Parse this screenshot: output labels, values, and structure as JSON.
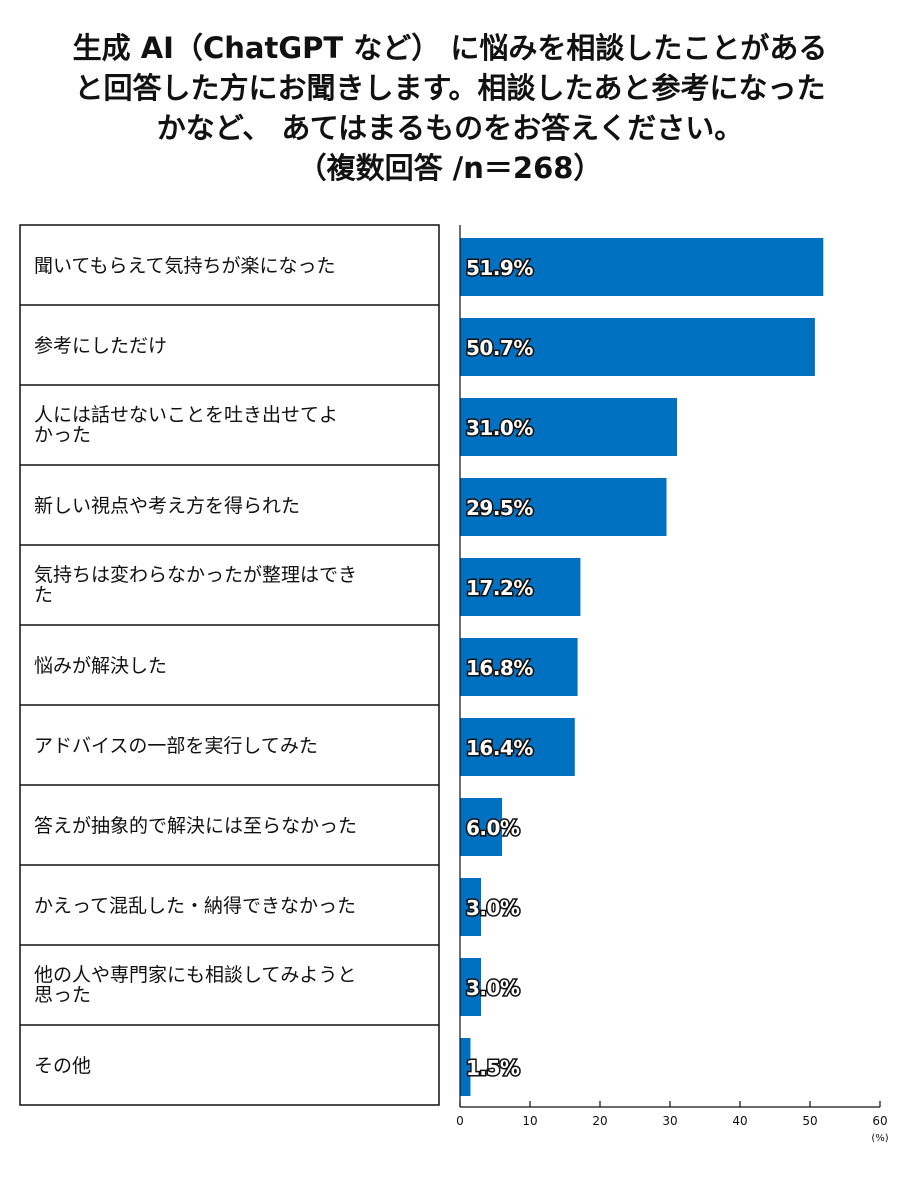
{
  "chart_data": {
    "type": "bar",
    "orientation": "horizontal",
    "title_lines": [
      "生成 AI（ChatGPT など） に悩みを相談したことがある",
      "と回答した方にお聞きします。相談したあと参考になった",
      "かなど、 あてはまるものをお答えください。",
      "（複数回答 /n＝268）"
    ],
    "categories": [
      [
        "聞いてもらえて気持ちが楽になった"
      ],
      [
        "参考にしただけ"
      ],
      [
        "人には話せないことを吐き出せてよ",
        "かった"
      ],
      [
        "新しい視点や考え方を得られた"
      ],
      [
        "気持ちは変わらなかったが整理はでき",
        "た"
      ],
      [
        "悩みが解決した"
      ],
      [
        "アドバイスの一部を実行してみた"
      ],
      [
        "答えが抽象的で解決には至らなかった"
      ],
      [
        "かえって混乱した・納得できなかった"
      ],
      [
        "他の人や専門家にも相談してみようと",
        "思った"
      ],
      [
        "その他"
      ]
    ],
    "values": [
      51.9,
      50.7,
      31.0,
      29.5,
      17.2,
      16.8,
      16.4,
      6.0,
      3.0,
      3.0,
      1.5
    ],
    "value_labels": [
      "51.9%",
      "50.7%",
      "31.0%",
      "29.5%",
      "17.2%",
      "16.8%",
      "16.4%",
      "6.0%",
      "3.0%",
      "3.0%",
      "1.5%"
    ],
    "xlim": [
      0,
      60
    ],
    "xticks": [
      0,
      10,
      20,
      30,
      40,
      50,
      60
    ],
    "xunit": "(%)",
    "bar_color": "#0070c0",
    "grid": false
  }
}
